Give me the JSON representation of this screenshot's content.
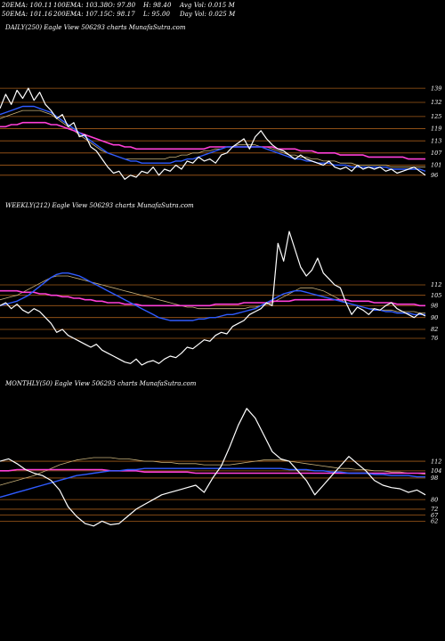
{
  "header": {
    "row1": [
      "20EMA: 100.11",
      "100EMA: 103.38",
      "O: 97.80",
      "H: 98.40",
      "Avg Vol: 0.015 M"
    ],
    "row2": [
      "50EMA: 101.16",
      "200EMA: 107.15",
      "C: 98.17",
      "L: 95.00",
      "Day Vol: 0.025 M"
    ]
  },
  "colors": {
    "background": "#000000",
    "price": "#ffffff",
    "ema_short": "#2f5bff",
    "ema_long": "#ff3fd8",
    "band": "#b5651d",
    "thin_ma": "#c9b27a"
  },
  "chart_data": [
    {
      "type": "line",
      "title": "DAILY(250) Eagle  View  506293 charts MunafaSutra.com",
      "ylim": [
        88,
        165
      ],
      "price_levels": [
        139,
        132,
        125,
        119,
        113,
        107,
        101,
        96
      ],
      "tick_labels": [
        "139",
        "132",
        "125",
        "119",
        "113",
        "107",
        "101",
        "96"
      ],
      "series": [
        {
          "role": "price",
          "values": [
            129,
            136,
            131,
            138,
            134,
            139,
            133,
            137,
            131,
            128,
            124,
            126,
            120,
            122,
            115,
            116,
            110,
            108,
            104,
            100,
            97,
            98,
            94,
            96,
            95,
            98,
            97,
            100,
            96,
            99,
            98,
            101,
            99,
            103,
            102,
            105,
            103,
            104,
            102,
            106,
            107,
            110,
            112,
            114,
            109,
            115,
            118,
            114,
            111,
            109,
            108,
            106,
            104,
            106,
            104,
            103,
            102,
            101,
            103,
            100,
            99,
            100,
            98,
            101,
            99,
            100,
            99,
            100,
            98,
            99,
            97,
            98,
            99,
            100,
            98,
            96
          ]
        },
        {
          "role": "ema_short",
          "values": [
            126,
            127,
            128,
            129,
            130,
            130,
            130,
            129,
            128,
            127,
            125,
            123,
            121,
            119,
            117,
            115,
            113,
            111,
            109,
            107,
            106,
            105,
            104,
            103,
            103,
            102,
            102,
            102,
            102,
            102,
            102,
            103,
            103,
            104,
            104,
            105,
            106,
            107,
            108,
            109,
            110,
            110,
            110,
            110,
            110,
            110,
            110,
            109,
            108,
            107,
            106,
            105,
            104,
            104,
            103,
            103,
            102,
            102,
            102,
            101,
            101,
            101,
            100,
            100,
            100,
            100,
            100,
            100,
            100,
            99,
            99,
            99,
            99,
            99,
            99,
            98
          ]
        },
        {
          "role": "ema_long",
          "values": [
            120,
            120,
            121,
            121,
            122,
            122,
            122,
            122,
            122,
            121,
            121,
            120,
            119,
            118,
            117,
            116,
            115,
            114,
            113,
            112,
            111,
            111,
            110,
            110,
            109,
            109,
            109,
            109,
            109,
            109,
            109,
            109,
            109,
            109,
            109,
            109,
            109,
            110,
            110,
            110,
            110,
            110,
            110,
            110,
            110,
            110,
            110,
            110,
            110,
            109,
            109,
            109,
            109,
            108,
            108,
            108,
            107,
            107,
            107,
            107,
            106,
            106,
            106,
            106,
            106,
            105,
            105,
            105,
            105,
            105,
            105,
            105,
            104,
            104,
            104,
            104
          ]
        },
        {
          "role": "thin_ma",
          "values": [
            124,
            125,
            126,
            127,
            128,
            128,
            128,
            128,
            127,
            126,
            124,
            122,
            120,
            118,
            116,
            114,
            112,
            110,
            108,
            107,
            106,
            105,
            104,
            104,
            104,
            104,
            104,
            104,
            104,
            104,
            105,
            105,
            106,
            106,
            107,
            107,
            108,
            108,
            109,
            109,
            110,
            110,
            111,
            111,
            111,
            111,
            110,
            110,
            109,
            108,
            107,
            106,
            106,
            105,
            105,
            104,
            104,
            103,
            103,
            103,
            102,
            102,
            102,
            101,
            101,
            101,
            101,
            101,
            101,
            100,
            100,
            100,
            100,
            100,
            100,
            100
          ]
        }
      ]
    },
    {
      "type": "line",
      "title": "WEEKLY(212) Eagle  View  506293 charts MunafaSutra.com",
      "ylim": [
        55,
        160
      ],
      "price_levels": [
        112,
        105,
        98,
        90,
        82,
        76
      ],
      "tick_labels": [
        "112",
        "105",
        "98",
        "90",
        "82",
        "76"
      ],
      "series": [
        {
          "role": "price",
          "values": [
            98,
            100,
            96,
            99,
            95,
            93,
            96,
            94,
            90,
            86,
            80,
            82,
            78,
            76,
            74,
            72,
            70,
            72,
            68,
            66,
            64,
            62,
            60,
            59,
            62,
            58,
            60,
            61,
            59,
            62,
            64,
            63,
            66,
            70,
            69,
            72,
            75,
            74,
            78,
            80,
            79,
            84,
            86,
            88,
            92,
            94,
            96,
            100,
            98,
            140,
            128,
            148,
            136,
            124,
            118,
            122,
            130,
            120,
            116,
            112,
            110,
            100,
            92,
            97,
            95,
            92,
            96,
            95,
            98,
            100,
            96,
            94,
            92,
            90,
            93,
            91
          ]
        },
        {
          "role": "ema_short",
          "values": [
            98,
            99,
            100,
            101,
            103,
            105,
            108,
            111,
            114,
            117,
            119,
            120,
            120,
            119,
            118,
            116,
            114,
            112,
            110,
            108,
            106,
            104,
            102,
            100,
            98,
            96,
            94,
            92,
            90,
            89,
            88,
            88,
            88,
            88,
            88,
            89,
            89,
            90,
            90,
            91,
            92,
            92,
            93,
            94,
            95,
            96,
            98,
            100,
            102,
            104,
            106,
            107,
            108,
            108,
            107,
            106,
            105,
            104,
            103,
            102,
            101,
            100,
            99,
            98,
            97,
            96,
            95,
            95,
            94,
            94,
            93,
            93,
            93,
            92,
            92,
            92
          ]
        },
        {
          "role": "ema_long",
          "values": [
            108,
            108,
            108,
            108,
            107,
            107,
            107,
            106,
            106,
            105,
            105,
            104,
            104,
            103,
            103,
            102,
            102,
            101,
            101,
            100,
            100,
            100,
            99,
            99,
            99,
            98,
            98,
            98,
            98,
            98,
            98,
            98,
            98,
            98,
            98,
            98,
            98,
            98,
            99,
            99,
            99,
            99,
            99,
            100,
            100,
            100,
            100,
            100,
            101,
            101,
            101,
            101,
            102,
            102,
            102,
            102,
            102,
            102,
            102,
            102,
            102,
            102,
            101,
            101,
            101,
            101,
            100,
            100,
            100,
            100,
            99,
            99,
            99,
            99,
            98,
            98
          ]
        },
        {
          "role": "thin_ma",
          "values": [
            102,
            103,
            104,
            105,
            107,
            109,
            111,
            113,
            115,
            117,
            118,
            118,
            118,
            117,
            116,
            115,
            114,
            113,
            112,
            111,
            110,
            109,
            108,
            107,
            106,
            105,
            104,
            103,
            102,
            101,
            100,
            99,
            98,
            97,
            97,
            96,
            96,
            96,
            96,
            96,
            96,
            96,
            96,
            96,
            97,
            97,
            98,
            99,
            100,
            102,
            104,
            106,
            108,
            110,
            110,
            110,
            109,
            108,
            106,
            104,
            102,
            100,
            99,
            98,
            97,
            96,
            96,
            95,
            95,
            95,
            94,
            94,
            94,
            94,
            93,
            93
          ]
        }
      ]
    },
    {
      "type": "line",
      "title": "MONTHLY(50) Eagle  View  506293 charts MunafaSutra.com",
      "ylim": [
        40,
        170
      ],
      "price_levels": [
        112,
        104,
        98,
        80,
        72,
        67,
        62
      ],
      "tick_labels": [
        "112",
        "104",
        "98",
        "80",
        "72",
        "67",
        "62"
      ],
      "series": [
        {
          "role": "price",
          "values": [
            112,
            114,
            110,
            105,
            102,
            100,
            96,
            88,
            74,
            66,
            60,
            58,
            62,
            59,
            60,
            66,
            72,
            76,
            80,
            84,
            86,
            88,
            90,
            92,
            86,
            98,
            108,
            124,
            142,
            156,
            148,
            134,
            120,
            114,
            112,
            104,
            96,
            84,
            92,
            100,
            108,
            116,
            110,
            104,
            96,
            92,
            90,
            89,
            86,
            88,
            84
          ]
        },
        {
          "role": "ema_short",
          "values": [
            82,
            84,
            86,
            88,
            90,
            92,
            94,
            96,
            98,
            100,
            101,
            102,
            103,
            104,
            104,
            105,
            105,
            106,
            106,
            106,
            106,
            106,
            106,
            106,
            106,
            106,
            106,
            106,
            106,
            106,
            106,
            106,
            106,
            106,
            105,
            105,
            105,
            104,
            104,
            103,
            103,
            102,
            102,
            102,
            101,
            101,
            100,
            100,
            100,
            99,
            99
          ]
        },
        {
          "role": "ema_long",
          "values": [
            104,
            104,
            105,
            105,
            105,
            105,
            105,
            105,
            105,
            105,
            105,
            105,
            105,
            104,
            104,
            104,
            104,
            103,
            103,
            103,
            103,
            103,
            103,
            102,
            102,
            102,
            102,
            102,
            102,
            102,
            102,
            102,
            102,
            102,
            102,
            102,
            102,
            102,
            102,
            102,
            102,
            102,
            102,
            102,
            102,
            102,
            102,
            102,
            102,
            102,
            102
          ]
        },
        {
          "role": "thin_ma",
          "values": [
            92,
            94,
            96,
            98,
            100,
            103,
            106,
            109,
            111,
            113,
            114,
            115,
            115,
            115,
            114,
            114,
            113,
            112,
            112,
            111,
            111,
            110,
            110,
            110,
            109,
            109,
            109,
            109,
            110,
            111,
            112,
            113,
            113,
            113,
            112,
            111,
            110,
            109,
            108,
            107,
            106,
            106,
            105,
            105,
            104,
            104,
            103,
            103,
            102,
            102,
            101
          ]
        }
      ]
    }
  ]
}
